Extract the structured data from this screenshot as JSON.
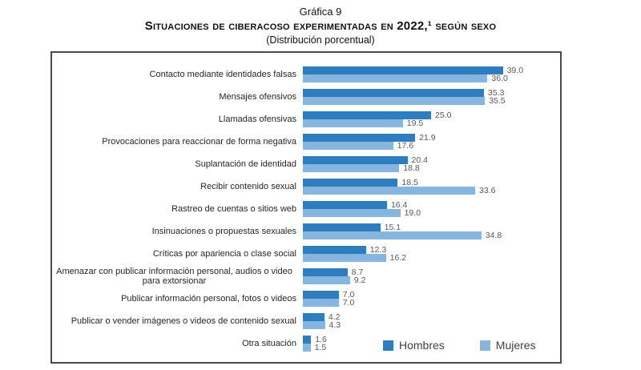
{
  "title": {
    "line1": "Gráfica 9",
    "line2": "Situaciones de ciberacoso experimentadas en 2022,¹ según sexo",
    "line3": "(Distribución porcentual)"
  },
  "legend": {
    "hombres": "Hombres",
    "mujeres": "Mujeres"
  },
  "colors": {
    "hombres": "#2E7DBE",
    "mujeres": "#86B5DF",
    "frame": "#4a4a4a",
    "value_label": "#595959"
  },
  "chart_data": {
    "type": "bar",
    "orientation": "horizontal",
    "title": "Situaciones de ciberacoso experimentadas en 2022,¹ según sexo",
    "subtitle": "(Distribución porcentual)",
    "unit": "percent",
    "xlim": [
      0,
      50
    ],
    "grid": false,
    "legend_position": "bottom-right",
    "value_labels": true,
    "categories": [
      "Contacto mediante identidades falsas",
      "Mensajes ofensivos",
      "Llamadas ofensivas",
      "Provocaciones para reaccionar de forma negativa",
      "Suplantación de identidad",
      "Recibir contenido sexual",
      "Rastreo de cuentas o sitios web",
      "Insinuaciones o propuestas sexuales",
      "Críticas por apariencia o clase social",
      "Amenazar con publicar información personal, audios o video para extorsionar",
      "Publicar información personal, fotos o videos",
      "Publicar o vender imágenes o videos de contenido sexual",
      "Otra situación"
    ],
    "series": [
      {
        "name": "Hombres",
        "color": "#2E7DBE",
        "values": [
          39.0,
          35.3,
          25.0,
          21.9,
          20.4,
          18.5,
          16.4,
          15.1,
          12.3,
          8.7,
          7.0,
          4.2,
          1.6
        ]
      },
      {
        "name": "Mujeres",
        "color": "#86B5DF",
        "values": [
          36.0,
          35.5,
          19.5,
          17.6,
          18.8,
          33.6,
          19.0,
          34.8,
          16.2,
          9.2,
          7.0,
          4.3,
          1.5
        ]
      }
    ]
  }
}
